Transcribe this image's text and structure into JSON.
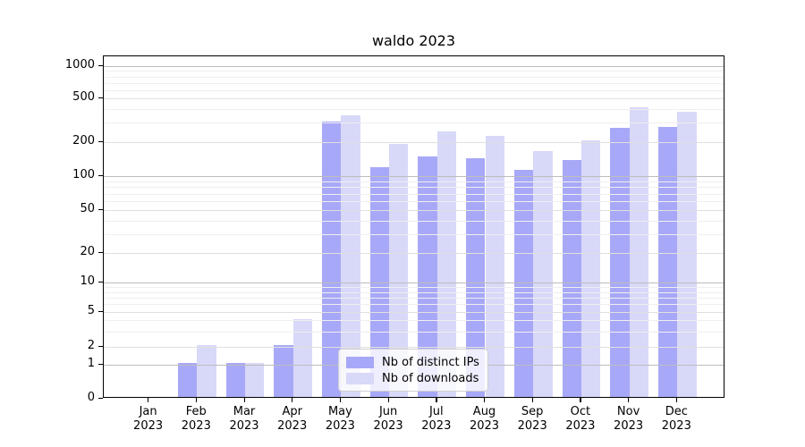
{
  "title": "waldo 2023",
  "x_axis": {
    "months": [
      "Jan",
      "Feb",
      "Mar",
      "Apr",
      "May",
      "Jun",
      "Jul",
      "Aug",
      "Sep",
      "Oct",
      "Nov",
      "Dec"
    ],
    "year": "2023"
  },
  "y_axis": {
    "tick_labels": [
      "0",
      "1",
      "2",
      "5",
      "10",
      "20",
      "50",
      "100",
      "200",
      "500",
      "1000"
    ]
  },
  "legend": {
    "items": [
      {
        "label": "Nb of distinct IPs",
        "color": "#a8a8f8"
      },
      {
        "label": "Nb of downloads",
        "color": "#d8d8f8"
      }
    ]
  },
  "colors": {
    "distinct_ips_bar": "#a8a8f8",
    "downloads_bar": "#d8d8f8",
    "grid_minor": "#efefef",
    "grid_mid": "#e0e0e0",
    "grid_power10": "#bdbdbd",
    "spine": "#000000",
    "legend_border": "#d0d0d0"
  },
  "chart_data": {
    "type": "bar",
    "title": "waldo 2023",
    "categories": [
      "Jan 2023",
      "Feb 2023",
      "Mar 2023",
      "Apr 2023",
      "May 2023",
      "Jun 2023",
      "Jul 2023",
      "Aug 2023",
      "Sep 2023",
      "Oct 2023",
      "Nov 2023",
      "Dec 2023"
    ],
    "series": [
      {
        "name": "Nb of distinct IPs",
        "color": "#a8a8f8",
        "values": [
          0,
          1,
          1,
          2,
          295,
          115,
          145,
          140,
          110,
          135,
          260,
          265
        ]
      },
      {
        "name": "Nb of downloads",
        "color": "#d8d8f8",
        "values": [
          0,
          2,
          1,
          4,
          335,
          185,
          240,
          220,
          160,
          200,
          400,
          365
        ]
      }
    ],
    "yscale": "symlog",
    "yticks": [
      0,
      1,
      2,
      5,
      10,
      20,
      50,
      100,
      200,
      500,
      1000
    ],
    "minor_gridlines": [
      3,
      4,
      6,
      7,
      8,
      9,
      30,
      40,
      60,
      70,
      80,
      90,
      300,
      400,
      600,
      700,
      800,
      900
    ],
    "ylim": [
      0,
      1000
    ],
    "grid": true,
    "grid_over_bars": true,
    "legend_position": "inside-bottom-center"
  }
}
